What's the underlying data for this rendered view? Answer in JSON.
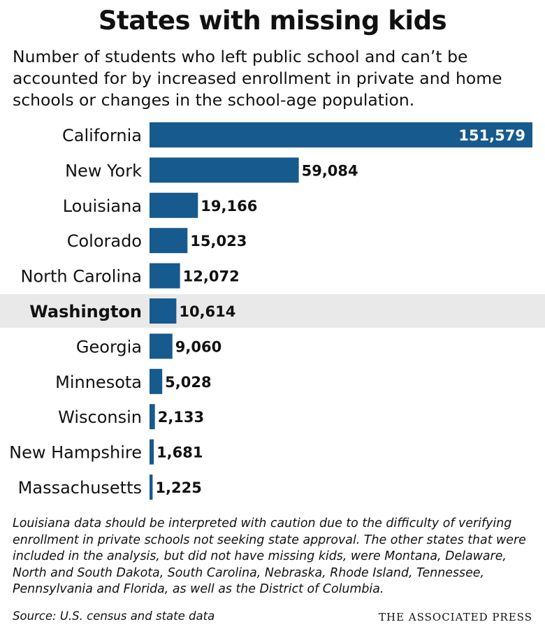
{
  "header": {
    "title": "States with missing kids",
    "subtitle": "Number of students who left public school and can’t be accounted for by increased enrollment in private and home schools or changes in the school-age population."
  },
  "colors": {
    "bar": "#165a8e",
    "highlight_band": "#e9e9e9",
    "text": "#111111",
    "inside_label": "#ffffff"
  },
  "chart_data": {
    "type": "bar",
    "orientation": "horizontal",
    "categories": [
      "California",
      "New York",
      "Louisiana",
      "Colorado",
      "North Carolina",
      "Washington",
      "Georgia",
      "Minnesota",
      "Wisconsin",
      "New Hampshire",
      "Massachusetts"
    ],
    "values": [
      151579,
      59084,
      19166,
      15023,
      12072,
      10614,
      9060,
      5028,
      2133,
      1681,
      1225
    ],
    "value_labels": [
      "151,579",
      "59,084",
      "19,166",
      "15,023",
      "12,072",
      "10,614",
      "9,060",
      "5,028",
      "2,133",
      "1,681",
      "1,225"
    ],
    "highlighted_category": "Washington",
    "xlim": [
      0,
      151579
    ],
    "grid": false,
    "legend": "none"
  },
  "footer": {
    "note": "Louisiana data should be interpreted with caution due to the difficulty of verifying enrollment in private schools not seeking state approval. The other states that were included in the analysis, but did not have missing kids, were Montana, Delaware, North and South Dakota, South Carolina, Nebraska, Rhode Island, Tennessee, Pennsylvania and Florida, as well as the District of Columbia.",
    "source": "Source: U.S. census and state data",
    "credit": "The Associated Press"
  }
}
